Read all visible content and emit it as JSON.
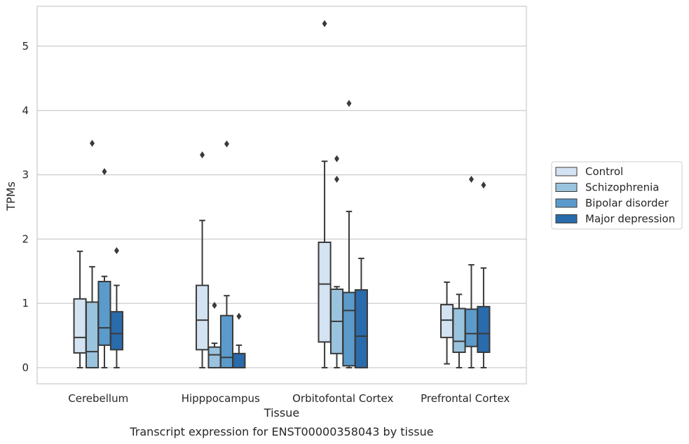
{
  "chart_data": {
    "type": "box",
    "caption": "Transcript expression for ENST00000358043 by tissue",
    "xlabel": "Tissue",
    "ylabel": "TPMs",
    "ylim": [
      -0.25,
      5.62
    ],
    "yticks": [
      0,
      1,
      2,
      3,
      4,
      5
    ],
    "grid": "horizontal",
    "legend_position": "right",
    "categories": [
      "Cerebellum",
      "Hipppocampus",
      "Orbitofontal Cortex",
      "Prefrontal Cortex"
    ],
    "series": [
      {
        "name": "Control",
        "color": "#d4e3f2",
        "boxes": [
          {
            "whislo": 0.0,
            "q1": 0.23,
            "med": 0.47,
            "q3": 1.07,
            "whishi": 1.81,
            "fliers": []
          },
          {
            "whislo": 0.0,
            "q1": 0.28,
            "med": 0.74,
            "q3": 1.28,
            "whishi": 2.29,
            "fliers": [
              3.31
            ]
          },
          {
            "whislo": 0.0,
            "q1": 0.4,
            "med": 1.3,
            "q3": 1.95,
            "whishi": 3.21,
            "fliers": [
              5.35
            ]
          },
          {
            "whislo": 0.06,
            "q1": 0.47,
            "med": 0.74,
            "q3": 0.98,
            "whishi": 1.33,
            "fliers": []
          }
        ]
      },
      {
        "name": "Schizophrenia",
        "color": "#9ac3de",
        "boxes": [
          {
            "whislo": 0.0,
            "q1": 0.0,
            "med": 0.25,
            "q3": 1.02,
            "whishi": 1.57,
            "fliers": [
              3.49
            ]
          },
          {
            "whislo": 0.0,
            "q1": 0.0,
            "med": 0.2,
            "q3": 0.32,
            "whishi": 0.38,
            "fliers": [
              0.97
            ]
          },
          {
            "whislo": 0.0,
            "q1": 0.22,
            "med": 0.72,
            "q3": 1.22,
            "whishi": 1.26,
            "fliers": [
              2.93,
              3.25
            ]
          },
          {
            "whislo": 0.0,
            "q1": 0.24,
            "med": 0.41,
            "q3": 0.92,
            "whishi": 1.14,
            "fliers": []
          }
        ]
      },
      {
        "name": "Bipolar disorder",
        "color": "#5b9bcb",
        "boxes": [
          {
            "whislo": 0.0,
            "q1": 0.35,
            "med": 0.62,
            "q3": 1.34,
            "whishi": 1.42,
            "fliers": [
              3.05
            ]
          },
          {
            "whislo": 0.0,
            "q1": 0.0,
            "med": 0.16,
            "q3": 0.81,
            "whishi": 1.12,
            "fliers": [
              3.48
            ]
          },
          {
            "whislo": 0.0,
            "q1": 0.03,
            "med": 0.89,
            "q3": 1.17,
            "whishi": 2.43,
            "fliers": [
              4.11
            ]
          },
          {
            "whislo": 0.0,
            "q1": 0.33,
            "med": 0.53,
            "q3": 0.91,
            "whishi": 1.6,
            "fliers": [
              2.93
            ]
          }
        ]
      },
      {
        "name": "Major depression",
        "color": "#2a6bab",
        "boxes": [
          {
            "whislo": 0.0,
            "q1": 0.28,
            "med": 0.53,
            "q3": 0.87,
            "whishi": 1.28,
            "fliers": [
              1.82
            ]
          },
          {
            "whislo": 0.0,
            "q1": 0.0,
            "med": 0.0,
            "q3": 0.22,
            "whishi": 0.35,
            "fliers": [
              0.8
            ]
          },
          {
            "whislo": 0.0,
            "q1": 0.0,
            "med": 0.49,
            "q3": 1.21,
            "whishi": 1.7,
            "fliers": []
          },
          {
            "whislo": 0.0,
            "q1": 0.24,
            "med": 0.53,
            "q3": 0.95,
            "whishi": 1.55,
            "fliers": [
              2.84
            ]
          }
        ]
      }
    ]
  }
}
